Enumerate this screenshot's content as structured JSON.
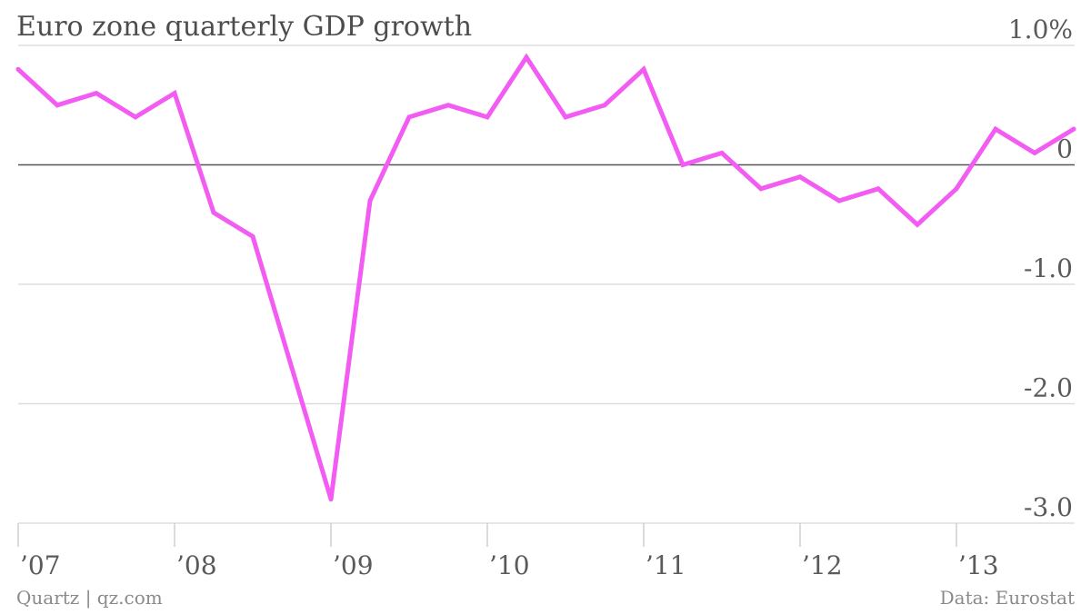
{
  "title": "Euro zone quarterly GDP growth",
  "source_left": "Quartz | qz.com",
  "source_right": "Data: Eurostat",
  "colors": {
    "line": "#f25cf2",
    "zero_line": "#555555",
    "grid": "#dddddd",
    "axis": "#cfcfcf"
  },
  "chart_data": {
    "type": "line",
    "title": "Euro zone quarterly GDP growth",
    "xlabel": "",
    "ylabel": "",
    "ylim": [
      -3.0,
      1.0
    ],
    "yticks": [
      1.0,
      0,
      -1.0,
      -2.0,
      -3.0
    ],
    "ytick_labels": [
      "1.0%",
      "0",
      "-1.0",
      "-2.0",
      "-3.0"
    ],
    "xticks": [
      2007,
      2008,
      2009,
      2010,
      2011,
      2012,
      2013
    ],
    "xtick_labels": [
      "’07",
      "’08",
      "’09",
      "’10",
      "’11",
      "’12",
      "’13"
    ],
    "grid": true,
    "series": [
      {
        "x": [
          2007.0,
          2007.25,
          2007.5,
          2007.75,
          2008.0,
          2008.25,
          2008.5,
          2008.75,
          2009.0,
          2009.25,
          2009.5,
          2009.75,
          2010.0,
          2010.25,
          2010.5,
          2010.75,
          2011.0,
          2011.25,
          2011.5,
          2011.75,
          2012.0,
          2012.25,
          2012.5,
          2012.75,
          2013.0,
          2013.25,
          2013.5,
          2013.75
        ],
        "values": [
          0.8,
          0.5,
          0.6,
          0.4,
          0.6,
          -0.4,
          -0.6,
          -1.7,
          -2.8,
          -0.3,
          0.4,
          0.5,
          0.4,
          0.9,
          0.4,
          0.5,
          0.8,
          0.0,
          0.1,
          -0.2,
          -0.1,
          -0.3,
          -0.2,
          -0.5,
          -0.2,
          0.3,
          0.1,
          0.3
        ]
      }
    ]
  }
}
